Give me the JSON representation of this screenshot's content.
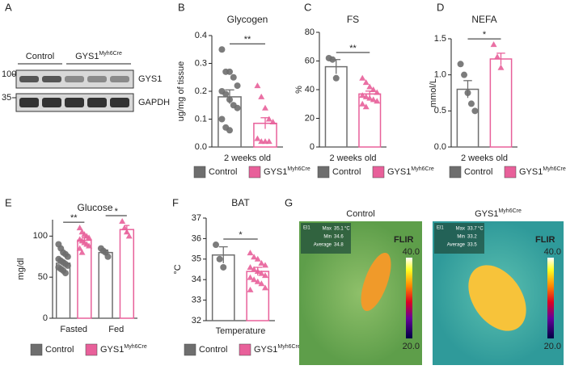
{
  "chart_data": [
    {
      "type": "bar",
      "panel": "B",
      "title": "Glycogen",
      "ylabel": "ug/mg of tissue",
      "categories": [
        "2 weeks old"
      ],
      "ylim": [
        0,
        0.4
      ],
      "yticks": [
        {
          "value": 0,
          "label": "0.0"
        },
        0.1,
        0.2,
        0.3,
        0.4
      ],
      "significance": [
        "**"
      ],
      "series": [
        {
          "name": "Control",
          "color": "#6e6e6e",
          "marker": "circle",
          "values": [
            0.18
          ],
          "errors": [
            0.025
          ],
          "points": [
            [
              0.35,
              0.27,
              0.27,
              0.25,
              0.22,
              0.2,
              0.19,
              0.17,
              0.15,
              0.14,
              0.1,
              0.07,
              0.06
            ]
          ]
        },
        {
          "name": "GYS1",
          "superscript": "Myh6Cre",
          "color": "#e8609a",
          "marker": "triangle",
          "values": [
            0.085
          ],
          "errors": [
            0.02
          ],
          "points": [
            [
              0.22,
              0.18,
              0.14,
              0.1,
              0.09,
              0.03,
              0.02,
              0.02,
              0.02
            ]
          ]
        }
      ]
    },
    {
      "type": "bar",
      "panel": "C",
      "title": "FS",
      "ylabel": "%",
      "categories": [
        "2 weeks old"
      ],
      "ylim": [
        0,
        80
      ],
      "yticks": [
        0,
        20,
        40,
        60,
        80
      ],
      "significance": [
        "**"
      ],
      "series": [
        {
          "name": "Control",
          "color": "#6e6e6e",
          "marker": "circle",
          "values": [
            56
          ],
          "errors": [
            5
          ],
          "points": [
            [
              62,
              61,
              48
            ]
          ]
        },
        {
          "name": "GYS1",
          "superscript": "Myh6Cre",
          "color": "#e8609a",
          "marker": "triangle",
          "values": [
            37
          ],
          "errors": [
            2
          ],
          "points": [
            [
              48,
              45,
              42,
              40,
              38,
              36,
              35,
              34,
              33,
              32,
              30,
              28
            ]
          ]
        }
      ]
    },
    {
      "type": "bar",
      "panel": "D",
      "title": "NEFA",
      "ylabel": "mmol/L",
      "categories": [
        "2 weeks old"
      ],
      "ylim": [
        0,
        1.5
      ],
      "yticks": [
        {
          "value": 0,
          "label": "0.0"
        },
        0.5,
        {
          "value": 1,
          "label": "1.0"
        },
        1.5
      ],
      "significance": [
        "*"
      ],
      "series": [
        {
          "name": "Control",
          "color": "#6e6e6e",
          "marker": "circle",
          "values": [
            0.8
          ],
          "errors": [
            0.12
          ],
          "points": [
            [
              1.15,
              1.0,
              0.75,
              0.6,
              0.5
            ]
          ]
        },
        {
          "name": "GYS1",
          "superscript": "Myh6Cre",
          "color": "#e8609a",
          "marker": "triangle",
          "values": [
            1.22
          ],
          "errors": [
            0.08
          ],
          "points": [
            [
              1.42,
              1.25,
              1.1
            ]
          ]
        }
      ]
    },
    {
      "type": "bar",
      "panel": "E",
      "title": "Glucose",
      "ylabel": "mg/dl",
      "categories": [
        "Fasted",
        "Fed"
      ],
      "ylim": [
        0,
        120
      ],
      "yticks": [
        0,
        50,
        100
      ],
      "significance": [
        "**",
        "*"
      ],
      "series": [
        {
          "name": "Control",
          "color": "#6e6e6e",
          "marker": "circle",
          "values": [
            67,
            80
          ],
          "errors": [
            3,
            3
          ],
          "points": [
            [
              90,
              85,
              80,
              78,
              75,
              72,
              70,
              68,
              66,
              64,
              62,
              60,
              58,
              55
            ],
            [
              85,
              82,
              80,
              75
            ]
          ]
        },
        {
          "name": "GYS1",
          "superscript": "Myh6Cre",
          "color": "#e8609a",
          "marker": "triangle",
          "values": [
            95,
            108
          ],
          "errors": [
            3,
            5
          ],
          "points": [
            [
              110,
              105,
              102,
              100,
              98,
              96,
              94,
              92,
              90,
              88,
              85,
              80
            ],
            [
              118,
              110,
              105,
              100
            ]
          ]
        }
      ]
    },
    {
      "type": "bar",
      "panel": "F",
      "title": "BAT",
      "ylabel": "°C",
      "categories": [
        "Temperature"
      ],
      "ylim": [
        32,
        37
      ],
      "yticks": [
        32,
        33,
        34,
        35,
        36,
        37
      ],
      "significance": [
        "*"
      ],
      "series": [
        {
          "name": "Control",
          "color": "#6e6e6e",
          "marker": "circle",
          "values": [
            35.2
          ],
          "errors": [
            0.4
          ],
          "points": [
            [
              35.7,
              35.0,
              34.6
            ]
          ]
        },
        {
          "name": "GYS1",
          "superscript": "Myh6Cre",
          "color": "#e8609a",
          "marker": "triangle",
          "values": [
            34.4
          ],
          "errors": [
            0.2
          ],
          "points": [
            [
              35.3,
              35.1,
              35.0,
              34.8,
              34.7,
              34.6,
              34.5,
              34.4,
              34.3,
              34.2,
              34.1,
              34.0,
              33.9,
              33.8,
              33.6,
              33.5
            ]
          ]
        }
      ]
    }
  ],
  "blot": {
    "panel": "A",
    "groups": [
      {
        "label": "Control"
      },
      {
        "label": "GYS1",
        "superscript": "Myh6Cre"
      }
    ],
    "markers": [
      100,
      35
    ],
    "bands": [
      "GYS1",
      "GAPDH"
    ]
  },
  "thermal": {
    "panel": "G",
    "images": [
      {
        "label": "Control",
        "spot": "El1",
        "max_label": "Max",
        "max": 35.1,
        "min_label": "Min",
        "min": 34.6,
        "average_label": "Average",
        "average": 34.8,
        "unit": "°C",
        "brand": "FLIR",
        "scale_max": {
          "value": 40,
          "label": "40.0"
        },
        "scale_min": {
          "value": 20,
          "label": "20.0"
        }
      },
      {
        "label": "GYS1",
        "superscript": "Myh6Cre",
        "spot": "El1",
        "max_label": "Max",
        "max": 33.7,
        "min_label": "Min",
        "min": 33.2,
        "average_label": "Average",
        "average": 33.5,
        "unit": "°C",
        "brand": "FLIR",
        "scale_max": {
          "value": 40,
          "label": "40.0"
        },
        "scale_min": {
          "value": 20,
          "label": "20.0"
        }
      }
    ]
  }
}
